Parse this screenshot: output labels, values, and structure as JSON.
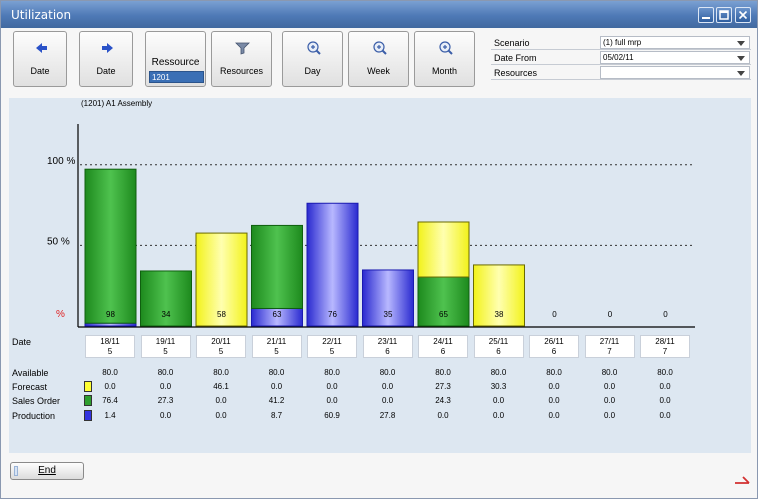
{
  "window": {
    "title": "Utilization"
  },
  "toolbar": {
    "buttons": [
      {
        "label": "Date",
        "icon": "arrow-left-icon"
      },
      {
        "label": "Date",
        "icon": "arrow-right-icon"
      },
      {
        "label": "Resources",
        "icon": "filter-icon"
      },
      {
        "label": "Day",
        "icon": "zoom-icon"
      },
      {
        "label": "Week",
        "icon": "zoom-icon"
      },
      {
        "label": "Month",
        "icon": "zoom-icon"
      }
    ],
    "resource": {
      "label": "Ressource",
      "value": "1201"
    }
  },
  "form": {
    "scenario": {
      "label": "Scenario",
      "value": "(1) full mrp"
    },
    "date_from": {
      "label": "Date From",
      "value": "05/02/11"
    },
    "resources": {
      "label": "Resources",
      "value": ""
    }
  },
  "chart_data": {
    "type": "bar",
    "title": "(1201) A1 Assembly",
    "ylabel": "%",
    "ylim": [
      0,
      120
    ],
    "reference_lines": [
      {
        "label": "100 %",
        "value": 100
      },
      {
        "label": "50 %",
        "value": 50
      }
    ],
    "categories": [
      {
        "date": "18/11",
        "week": "5"
      },
      {
        "date": "19/11",
        "week": "5"
      },
      {
        "date": "20/11",
        "week": "5"
      },
      {
        "date": "21/11",
        "week": "5"
      },
      {
        "date": "22/11",
        "week": "5"
      },
      {
        "date": "23/11",
        "week": "6"
      },
      {
        "date": "24/11",
        "week": "6"
      },
      {
        "date": "25/11",
        "week": "6"
      },
      {
        "date": "26/11",
        "week": "6"
      },
      {
        "date": "27/11",
        "week": "7"
      },
      {
        "date": "28/11",
        "week": "7"
      }
    ],
    "totals": [
      "98",
      "34",
      "58",
      "63",
      "76",
      "35",
      "65",
      "38",
      "0",
      "0",
      "0"
    ],
    "rows": {
      "date_label": "Date",
      "available": {
        "label": "Available",
        "values": [
          "80.0",
          "80.0",
          "80.0",
          "80.0",
          "80.0",
          "80.0",
          "80.0",
          "80.0",
          "80.0",
          "80.0",
          "80.0"
        ]
      },
      "forecast": {
        "label": "Forecast",
        "color": "#ffff33",
        "values": [
          "0.0",
          "0.0",
          "46.1",
          "0.0",
          "0.0",
          "0.0",
          "27.3",
          "30.3",
          "0.0",
          "0.0",
          "0.0"
        ]
      },
      "sales_order": {
        "label": "Sales Order",
        "color": "#2e9e2e",
        "values": [
          "76.4",
          "27.3",
          "0.0",
          "41.2",
          "0.0",
          "0.0",
          "24.3",
          "0.0",
          "0.0",
          "0.0",
          "0.0"
        ]
      },
      "production": {
        "label": "Production",
        "color": "#3434e0",
        "values": [
          "1.4",
          "0.0",
          "0.0",
          "8.7",
          "60.9",
          "27.8",
          "0.0",
          "0.0",
          "0.0",
          "0.0",
          "0.0"
        ]
      }
    }
  },
  "footer": {
    "end_label": "End"
  }
}
